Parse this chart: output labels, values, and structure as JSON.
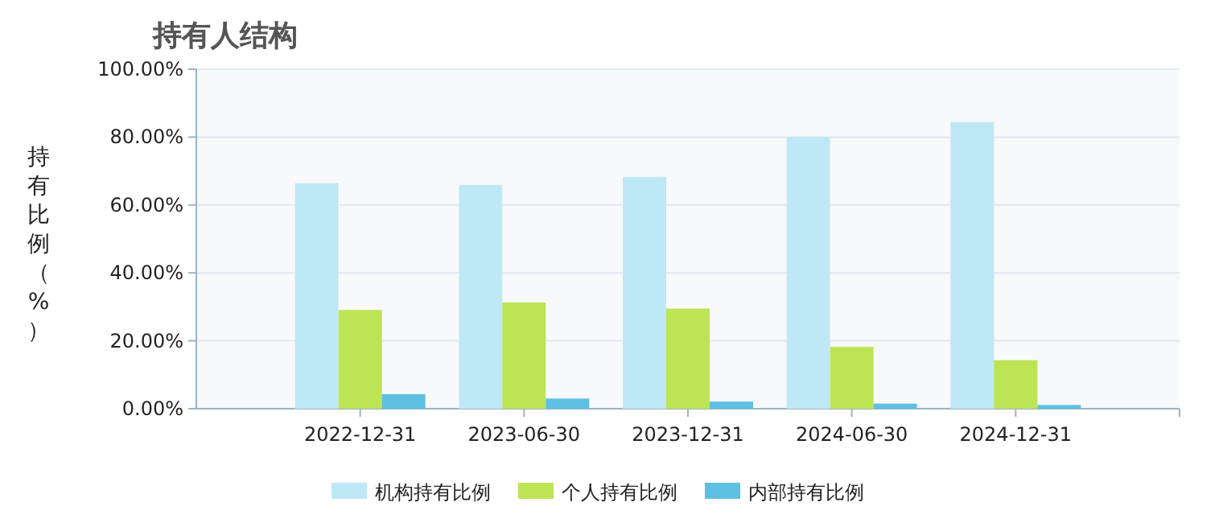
{
  "chart_data": {
    "type": "bar",
    "title": "持有人结构",
    "ylabel": "持有比例（%）",
    "categories": [
      "2022-12-31",
      "2023-06-30",
      "2023-12-31",
      "2024-06-30",
      "2024-12-31"
    ],
    "series": [
      {
        "name": "机构持有比例",
        "color": "#bfe8f6",
        "values": [
          66.4,
          65.9,
          68.3,
          80.1,
          84.4
        ]
      },
      {
        "name": "个人持有比例",
        "color": "#bde455",
        "values": [
          29.1,
          31.3,
          29.5,
          18.2,
          14.3
        ]
      },
      {
        "name": "内部持有比例",
        "color": "#5ec0e2",
        "values": [
          4.3,
          3.0,
          2.1,
          1.5,
          1.1
        ]
      }
    ],
    "ylim": [
      0,
      100
    ],
    "yticks": [
      {
        "value": 0,
        "label": "0.00%"
      },
      {
        "value": 20,
        "label": "20.00%"
      },
      {
        "value": 40,
        "label": "40.00%"
      },
      {
        "value": 60,
        "label": "60.00%"
      },
      {
        "value": 80,
        "label": "80.00%"
      },
      {
        "value": 100,
        "label": "100.00%"
      }
    ],
    "grid": "y",
    "legend": "bottom"
  }
}
